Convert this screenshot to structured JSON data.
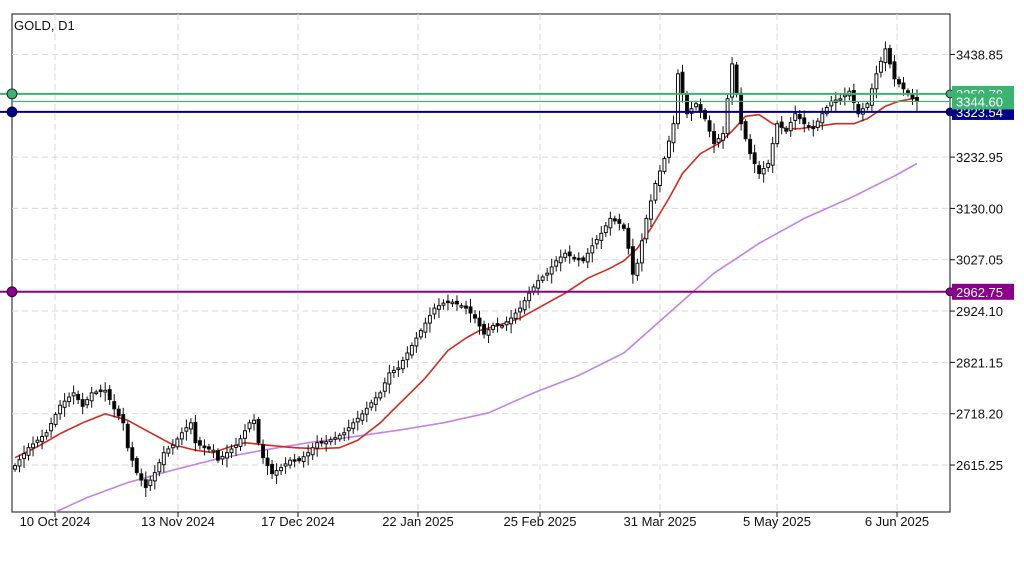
{
  "chart_data": {
    "type": "candlestick",
    "title": "GOLD, D1",
    "symbol": "GOLD",
    "timeframe": "D1",
    "x_tick_labels": [
      "10 Oct 2024",
      "13 Nov 2024",
      "17 Dec 2024",
      "22 Jan 2025",
      "25 Feb 2025",
      "31 Mar 2025",
      "5 May 2025",
      "6 Jun 2025"
    ],
    "y_tick_labels": [
      "3438.85",
      "3232.95",
      "3130.00",
      "3027.05",
      "2924.10",
      "2821.15",
      "2718.20",
      "2615.25"
    ],
    "ylim": [
      2521,
      3520
    ],
    "grid": true,
    "horizontal_lines": [
      {
        "name": "",
        "value": 3359.78,
        "label": "3359.78",
        "color": "#3cb371"
      },
      {
        "name": "",
        "value": 3323.54,
        "label": "3323.54",
        "color": "#00008b"
      },
      {
        "name": "",
        "value": 2962.75,
        "label": "2962.75",
        "color": "#8b008b"
      }
    ],
    "current_price": {
      "value": 3344.6,
      "label": "3344.60",
      "color": "#3cb371"
    },
    "series": [
      {
        "type": "candlestick",
        "up_color": "#ffffff",
        "down_color": "#000000",
        "anchor_points": [
          [
            0,
            2614
          ],
          [
            3,
            2650
          ],
          [
            7,
            2680
          ],
          [
            10,
            2735
          ],
          [
            13,
            2760
          ],
          [
            15,
            2733
          ],
          [
            17,
            2760
          ],
          [
            20,
            2765
          ],
          [
            22,
            2728
          ],
          [
            24,
            2700
          ],
          [
            25,
            2650
          ],
          [
            27,
            2600
          ],
          [
            29,
            2570
          ],
          [
            31,
            2600
          ],
          [
            33,
            2640
          ],
          [
            35,
            2655
          ],
          [
            37,
            2680
          ],
          [
            39,
            2700
          ],
          [
            40,
            2660
          ],
          [
            42,
            2650
          ],
          [
            44,
            2645
          ],
          [
            45,
            2625
          ],
          [
            47,
            2640
          ],
          [
            49,
            2655
          ],
          [
            50,
            2668
          ],
          [
            52,
            2700
          ],
          [
            53,
            2705
          ],
          [
            54,
            2660
          ],
          [
            55,
            2630
          ],
          [
            57,
            2598
          ],
          [
            59,
            2610
          ],
          [
            61,
            2625
          ],
          [
            63,
            2624
          ],
          [
            65,
            2640
          ],
          [
            67,
            2660
          ],
          [
            69,
            2662
          ],
          [
            71,
            2670
          ],
          [
            73,
            2680
          ],
          [
            75,
            2700
          ],
          [
            77,
            2718
          ],
          [
            79,
            2740
          ],
          [
            81,
            2760
          ],
          [
            83,
            2800
          ],
          [
            85,
            2810
          ],
          [
            87,
            2840
          ],
          [
            89,
            2870
          ],
          [
            91,
            2900
          ],
          [
            93,
            2930
          ],
          [
            95,
            2940
          ],
          [
            97,
            2942
          ],
          [
            99,
            2935
          ],
          [
            100,
            2930
          ],
          [
            102,
            2910
          ],
          [
            104,
            2878
          ],
          [
            106,
            2895
          ],
          [
            108,
            2895
          ],
          [
            110,
            2910
          ],
          [
            112,
            2930
          ],
          [
            114,
            2960
          ],
          [
            116,
            2985
          ],
          [
            118,
            3000
          ],
          [
            120,
            3025
          ],
          [
            122,
            3040
          ],
          [
            124,
            3030
          ],
          [
            126,
            3025
          ],
          [
            128,
            3055
          ],
          [
            130,
            3080
          ],
          [
            132,
            3110
          ],
          [
            134,
            3100
          ],
          [
            135,
            3090
          ],
          [
            136,
            3050
          ],
          [
            137,
            2998
          ],
          [
            138,
            3020
          ],
          [
            140,
            3110
          ],
          [
            142,
            3180
          ],
          [
            144,
            3230
          ],
          [
            146,
            3300
          ],
          [
            147,
            3400
          ],
          [
            149,
            3320
          ],
          [
            151,
            3340
          ],
          [
            153,
            3310
          ],
          [
            155,
            3260
          ],
          [
            157,
            3280
          ],
          [
            159,
            3420
          ],
          [
            161,
            3300
          ],
          [
            163,
            3240
          ],
          [
            165,
            3200
          ],
          [
            167,
            3220
          ],
          [
            169,
            3300
          ],
          [
            171,
            3285
          ],
          [
            173,
            3320
          ],
          [
            175,
            3300
          ],
          [
            177,
            3290
          ],
          [
            179,
            3320
          ],
          [
            181,
            3345
          ],
          [
            183,
            3350
          ],
          [
            185,
            3365
          ],
          [
            187,
            3320
          ],
          [
            189,
            3340
          ],
          [
            191,
            3400
          ],
          [
            193,
            3450
          ],
          [
            195,
            3390
          ],
          [
            197,
            3370
          ],
          [
            199,
            3350
          ],
          [
            200,
            3345
          ]
        ],
        "values_note": ""
      },
      {
        "type": "line",
        "color": "#d42a20",
        "anchor_points": [
          [
            0,
            2630
          ],
          [
            5,
            2652
          ],
          [
            10,
            2678
          ],
          [
            15,
            2700
          ],
          [
            20,
            2718
          ],
          [
            25,
            2705
          ],
          [
            30,
            2680
          ],
          [
            35,
            2656
          ],
          [
            40,
            2645
          ],
          [
            44,
            2640
          ],
          [
            47,
            2650
          ],
          [
            51,
            2660
          ],
          [
            56,
            2655
          ],
          [
            62,
            2650
          ],
          [
            67,
            2648
          ],
          [
            72,
            2650
          ],
          [
            76,
            2665
          ],
          [
            81,
            2700
          ],
          [
            86,
            2745
          ],
          [
            91,
            2790
          ],
          [
            96,
            2845
          ],
          [
            100,
            2870
          ],
          [
            103,
            2885
          ],
          [
            107,
            2895
          ],
          [
            112,
            2910
          ],
          [
            117,
            2935
          ],
          [
            122,
            2960
          ],
          [
            127,
            2990
          ],
          [
            132,
            3010
          ],
          [
            135,
            3025
          ],
          [
            138,
            3050
          ],
          [
            141,
            3090
          ],
          [
            145,
            3150
          ],
          [
            148,
            3200
          ],
          [
            152,
            3240
          ],
          [
            156,
            3260
          ],
          [
            159,
            3285
          ],
          [
            162,
            3315
          ],
          [
            165,
            3318
          ],
          [
            168,
            3300
          ],
          [
            171,
            3290
          ],
          [
            174,
            3290
          ],
          [
            178,
            3295
          ],
          [
            182,
            3300
          ],
          [
            186,
            3300
          ],
          [
            189,
            3310
          ],
          [
            193,
            3335
          ],
          [
            196,
            3345
          ],
          [
            200,
            3352
          ]
        ]
      },
      {
        "type": "line",
        "color": "#c383e8",
        "anchor_points": [
          [
            9,
            2521
          ],
          [
            16,
            2550
          ],
          [
            25,
            2580
          ],
          [
            35,
            2605
          ],
          [
            45,
            2628
          ],
          [
            55,
            2645
          ],
          [
            65,
            2660
          ],
          [
            75,
            2672
          ],
          [
            85,
            2685
          ],
          [
            95,
            2700
          ],
          [
            105,
            2720
          ],
          [
            115,
            2760
          ],
          [
            125,
            2795
          ],
          [
            135,
            2840
          ],
          [
            145,
            2920
          ],
          [
            155,
            3000
          ],
          [
            165,
            3060
          ],
          [
            175,
            3110
          ],
          [
            185,
            3150
          ],
          [
            195,
            3195
          ],
          [
            200,
            3220
          ]
        ]
      }
    ]
  }
}
